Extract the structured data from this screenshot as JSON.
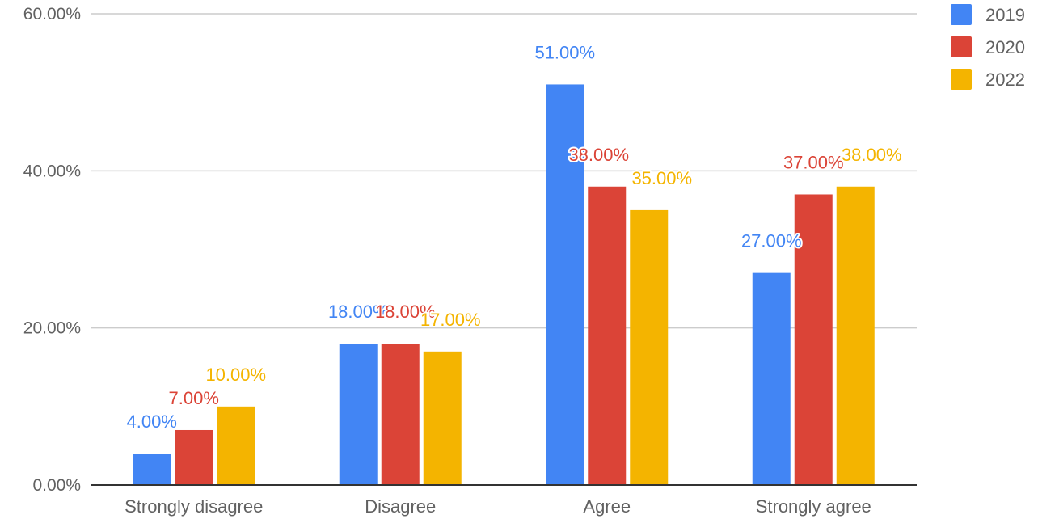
{
  "chart_data": {
    "type": "bar",
    "title": "",
    "xlabel": "",
    "ylabel": "",
    "categories": [
      "Strongly disagree",
      "Disagree",
      "Agree",
      "Strongly agree"
    ],
    "series": [
      {
        "name": "2019",
        "color": "#4285F4",
        "values": [
          4,
          18,
          51,
          27
        ],
        "labels": [
          "4.00%",
          "18.00%",
          "51.00%",
          "27.00%"
        ]
      },
      {
        "name": "2020",
        "color": "#DB4437",
        "values": [
          7,
          18,
          38,
          37
        ],
        "labels": [
          "7.00%",
          "18.00%",
          "38.00%",
          "37.00%"
        ]
      },
      {
        "name": "2022",
        "color": "#F4B400",
        "values": [
          10,
          17,
          35,
          38
        ],
        "labels": [
          "10.00%",
          "17.00%",
          "35.00%",
          "38.00%"
        ]
      }
    ],
    "ylim": [
      0,
      60
    ],
    "yticks": [
      0,
      20,
      40,
      60
    ],
    "ytick_labels": [
      "0.00%",
      "20.00%",
      "40.00%",
      "60.00%"
    ],
    "grid": true,
    "legend_position": "top-right"
  }
}
